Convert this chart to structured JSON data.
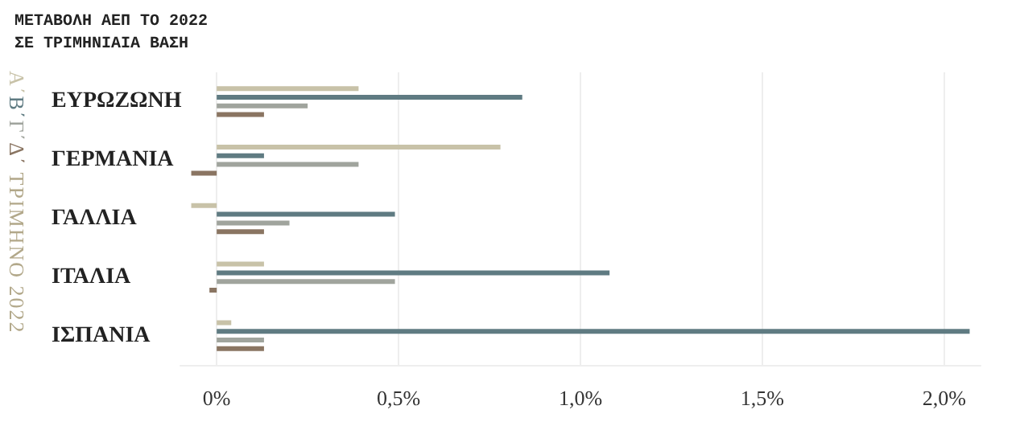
{
  "chart_data": {
    "type": "bar",
    "orientation": "horizontal",
    "title": "ΜΕΤΑΒΟΛΗ ΑΕΠ ΤΟ 2022",
    "subtitle": "ΣΕ ΤΡΙΜΗΝΙΑΙΑ ΒΑΣΗ",
    "legend_title": "ΤΡΙΜΗΝΟ 2022",
    "categories": [
      "ΕΥΡΩΖΩΝΗ",
      "ΓΕΡΜΑΝΙΑ",
      "ΓΑΛΛΙΑ",
      "ΙΤΑΛΙΑ",
      "ΙΣΠΑΝΙΑ"
    ],
    "series": [
      {
        "name": "Α΄",
        "color": "#c8c2a8",
        "values": [
          0.39,
          0.78,
          -0.07,
          0.13,
          0.04
        ]
      },
      {
        "name": "Β΄",
        "color": "#5f7b82",
        "values": [
          0.84,
          0.13,
          0.49,
          1.08,
          2.07
        ]
      },
      {
        "name": "Γ΄",
        "color": "#a0a49d",
        "values": [
          0.25,
          0.39,
          0.2,
          0.49,
          0.13
        ]
      },
      {
        "name": "Δ΄",
        "color": "#8a7562",
        "values": [
          0.13,
          -0.07,
          0.13,
          -0.02,
          0.13
        ]
      }
    ],
    "xlim": [
      -0.1,
      2.1
    ],
    "xticks": [
      {
        "value": 0,
        "label": "0%"
      },
      {
        "value": 0.5,
        "label": "0,5%"
      },
      {
        "value": 1,
        "label": "1,0%"
      },
      {
        "value": 1.5,
        "label": "1,5%"
      },
      {
        "value": 2,
        "label": "2,0%"
      }
    ],
    "grid": "x",
    "legend": "left"
  }
}
